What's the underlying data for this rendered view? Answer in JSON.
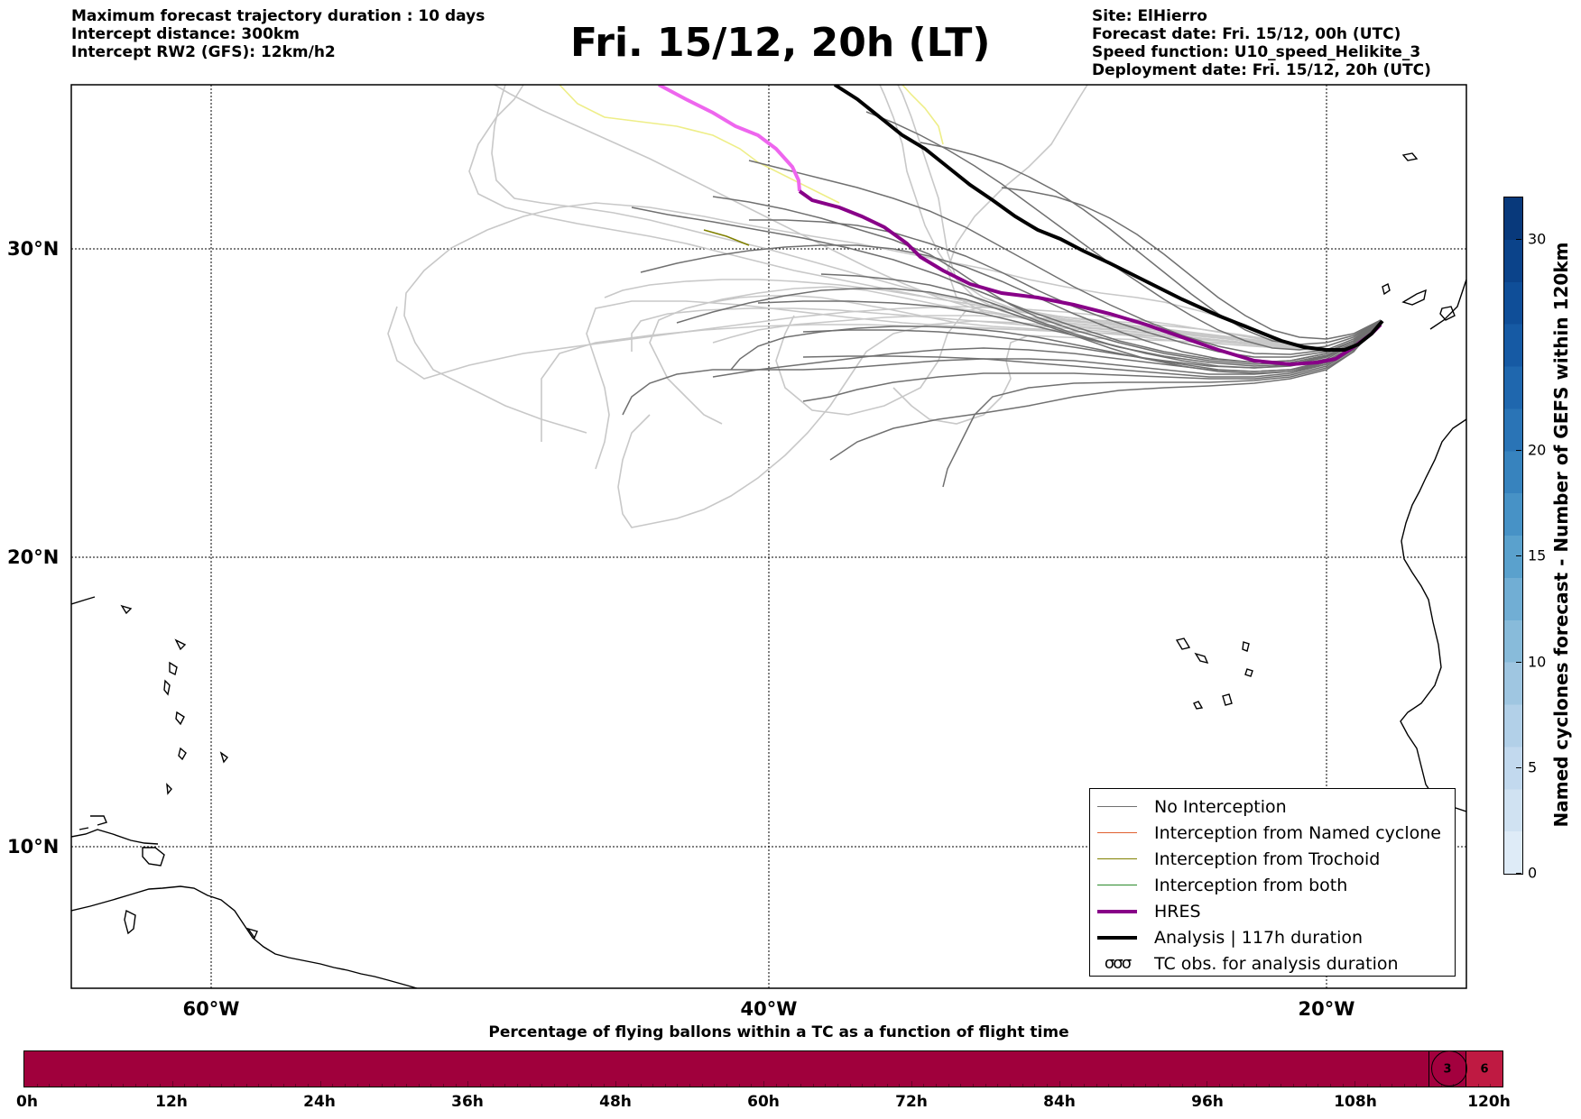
{
  "header_left": [
    "Maximum forecast trajectory duration : 10 days",
    "Intercept distance: 300km",
    "Intercept RW2 (GFS):  12km/h2"
  ],
  "title": "Fri. 15/12, 20h (LT)",
  "header_right": [
    "Site: ElHierro",
    "Forecast date: Fri. 15/12, 00h (UTC)",
    "Speed function: U10_speed_Helikite_3",
    "Deployment date: Fri. 15/12, 20h (UTC)"
  ],
  "map": {
    "lon_labels": [
      "60°W",
      "40°W",
      "20°W"
    ],
    "lat_labels": [
      "30°N",
      "20°N",
      "10°N"
    ],
    "colors": {
      "no_interception": "#707070",
      "gefs_light": "#c8c8c8",
      "yellow": "#eeee88",
      "pink": "#ee66ee",
      "hres": "#880088",
      "analysis": "#000000",
      "trochoid": "#808000",
      "named": "#e06030",
      "both": "#2a8a2a"
    }
  },
  "legend": [
    {
      "label": "No Interception",
      "color": "#707070",
      "width": 1.5,
      "icon": "line"
    },
    {
      "label": "Interception from Named cyclone",
      "color": "#e06030",
      "width": 1.5,
      "icon": "line"
    },
    {
      "label": "Interception from Trochoid",
      "color": "#808000",
      "width": 1.5,
      "icon": "line"
    },
    {
      "label": "Interception from both",
      "color": "#2a8a2a",
      "width": 1.5,
      "icon": "line"
    },
    {
      "label": "HRES",
      "color": "#880088",
      "width": 4,
      "icon": "line"
    },
    {
      "label": "Analysis | 117h duration",
      "color": "#000000",
      "width": 4,
      "icon": "line"
    },
    {
      "label": "TC obs. for analysis duration",
      "icon": "tc-symbol",
      "symbol": "σσσ"
    }
  ],
  "colorbar": {
    "label": "Named cyclones forecast - Number of GEFS within 120km",
    "min": 0,
    "max": 32,
    "ticks": [
      "0",
      "5",
      "10",
      "15",
      "20",
      "30"
    ],
    "tick_values": [
      0,
      5,
      10,
      15,
      20,
      30
    ],
    "levels": [
      0,
      2,
      4,
      6,
      8,
      10,
      12,
      14,
      16,
      18,
      20,
      22,
      24,
      26,
      28,
      30,
      32
    ],
    "colors": [
      "#deebf7",
      "#d0e2f2",
      "#c2d9ee",
      "#b2d0e8",
      "#9fc6e1",
      "#88bbda",
      "#71aed4",
      "#5aa1cd",
      "#4792c6",
      "#3783be",
      "#2a74b6",
      "#1f67ae",
      "#165aa4",
      "#0f4e98",
      "#0b438a",
      "#08397b"
    ]
  },
  "bottom": {
    "title": "Percentage of flying ballons within a TC as a function of flight time",
    "labels": [
      "0h",
      "12h",
      "24h",
      "36h",
      "48h",
      "60h",
      "72h",
      "84h",
      "96h",
      "108h",
      "120h"
    ],
    "max_hours": 120,
    "main_color": "#a0003c",
    "segments": [
      {
        "from_hours": 0,
        "to_hours": 114,
        "color": "#a0003c"
      },
      {
        "from_hours": 114,
        "to_hours": 117,
        "color": "#a3003e",
        "value": "3"
      },
      {
        "from_hours": 117,
        "to_hours": 120,
        "color": "#bf1a42",
        "value": "6"
      }
    ]
  }
}
